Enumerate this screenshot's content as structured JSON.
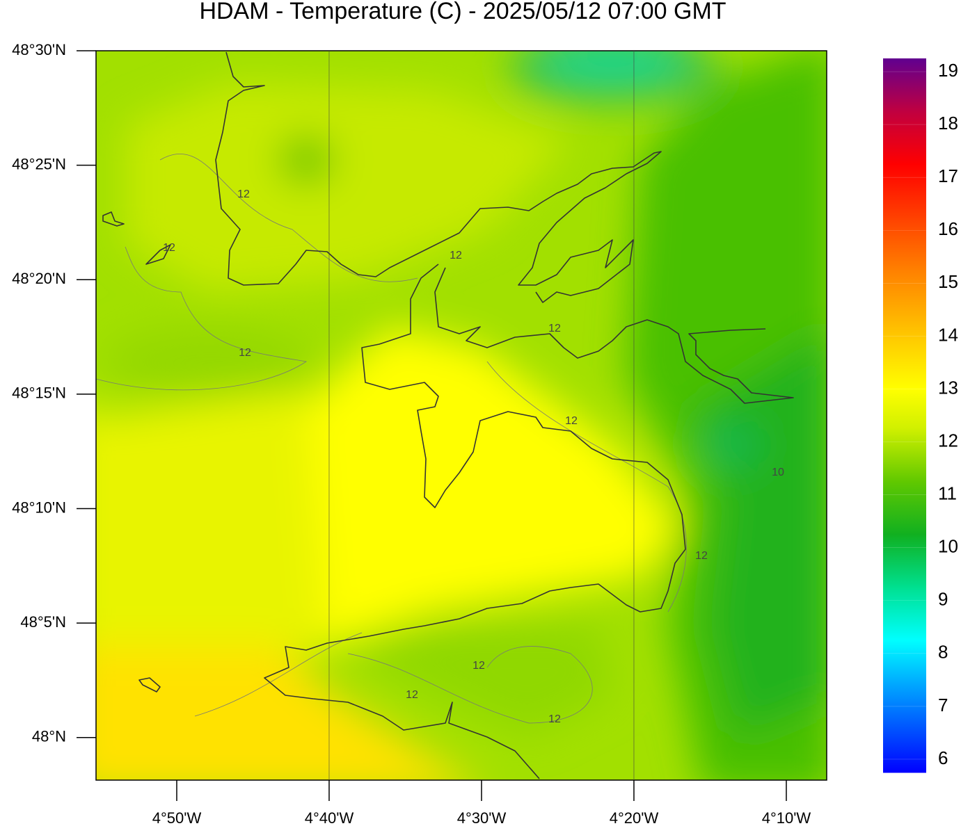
{
  "map": {
    "title": "HDAM - Temperature (C)  -  2025/05/12  07:00 GMT",
    "xlim": [
      -4.9216,
      -4.1225
    ],
    "ylim": [
      47.969,
      48.5
    ],
    "xticks": [
      {
        "value": -4.8333333,
        "label": "4°50'W"
      },
      {
        "value": -4.6666667,
        "label": "4°40'W"
      },
      {
        "value": -4.5,
        "label": "4°30'W"
      },
      {
        "value": -4.3333333,
        "label": "4°20'W"
      },
      {
        "value": -4.1666667,
        "label": "4°10'W"
      }
    ],
    "yticks": [
      {
        "value": 48.5,
        "label": "48°30'N"
      },
      {
        "value": 48.4166667,
        "label": "48°25'N"
      },
      {
        "value": 48.3333333,
        "label": "48°20'N"
      },
      {
        "value": 48.25,
        "label": "48°15'N"
      },
      {
        "value": 48.1666667,
        "label": "48°10'N"
      },
      {
        "value": 48.0833333,
        "label": "48°5'N"
      },
      {
        "value": 48,
        "label": "48°N"
      }
    ],
    "grid_x": [
      -4.6666667,
      -4.3333333
    ],
    "contour_labels": [
      "12",
      "12",
      "12",
      "12",
      "12",
      "12",
      "12",
      "12",
      "12",
      "12",
      "10"
    ],
    "colorbar": {
      "range": [
        5.75,
        19.25
      ],
      "ticks": [
        6,
        7,
        8,
        9,
        10,
        11,
        12,
        13,
        14,
        15,
        16,
        17,
        18,
        19
      ],
      "stops": [
        {
          "value": 5.75,
          "color": "#0000ff"
        },
        {
          "value": 7.5,
          "color": "#00b0ff"
        },
        {
          "value": 8.25,
          "color": "#00ffff"
        },
        {
          "value": 9.25,
          "color": "#00e090"
        },
        {
          "value": 10.25,
          "color": "#10b020"
        },
        {
          "value": 11.25,
          "color": "#60c800"
        },
        {
          "value": 12.25,
          "color": "#d0f000"
        },
        {
          "value": 13,
          "color": "#ffff00"
        },
        {
          "value": 14,
          "color": "#ffc800"
        },
        {
          "value": 15.25,
          "color": "#ff8000"
        },
        {
          "value": 16.25,
          "color": "#ff4000"
        },
        {
          "value": 17.25,
          "color": "#ff0000"
        },
        {
          "value": 18.25,
          "color": "#c00040"
        },
        {
          "value": 19.25,
          "color": "#600090"
        }
      ]
    }
  }
}
